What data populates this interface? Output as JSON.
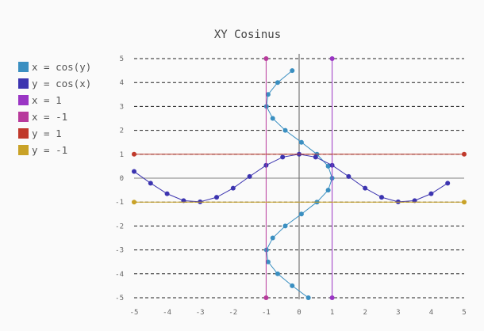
{
  "chart_data": {
    "type": "line",
    "title": "XY Cosinus",
    "xlim": [
      -5,
      5
    ],
    "ylim": [
      -5,
      5
    ],
    "xticks": [
      -5,
      -4,
      -3,
      -2,
      -1,
      0,
      1,
      2,
      3,
      4,
      5
    ],
    "yticks": [
      -5,
      -4,
      -3,
      -2,
      -1,
      0,
      1,
      2,
      3,
      4,
      5
    ],
    "legend_position": "left",
    "grid": "horizontal dashed",
    "series": [
      {
        "name": "x = cos(y)",
        "color": "#3a8fc1",
        "points": [
          [
            0.28,
            -5
          ],
          [
            -0.21,
            -4.5
          ],
          [
            -0.65,
            -4
          ],
          [
            -0.94,
            -3.5
          ],
          [
            -0.99,
            -3
          ],
          [
            -0.8,
            -2.5
          ],
          [
            -0.42,
            -2
          ],
          [
            0.07,
            -1.5
          ],
          [
            0.54,
            -1
          ],
          [
            0.88,
            -0.5
          ],
          [
            1,
            0
          ],
          [
            0.88,
            0.5
          ],
          [
            0.54,
            1
          ],
          [
            0.07,
            1.5
          ],
          [
            -0.42,
            2
          ],
          [
            -0.8,
            2.5
          ],
          [
            -0.99,
            3
          ],
          [
            -0.94,
            3.5
          ],
          [
            -0.65,
            4
          ],
          [
            -0.21,
            4.5
          ]
        ]
      },
      {
        "name": "y = cos(x)",
        "color": "#3c34b0",
        "points": [
          [
            -5,
            0.28
          ],
          [
            -4.5,
            -0.21
          ],
          [
            -4,
            -0.65
          ],
          [
            -3.5,
            -0.94
          ],
          [
            -3,
            -0.99
          ],
          [
            -2.5,
            -0.8
          ],
          [
            -2,
            -0.42
          ],
          [
            -1.5,
            0.07
          ],
          [
            -1,
            0.54
          ],
          [
            -0.5,
            0.88
          ],
          [
            0,
            1
          ],
          [
            0.5,
            0.88
          ],
          [
            1,
            0.54
          ],
          [
            1.5,
            0.07
          ],
          [
            2,
            -0.42
          ],
          [
            2.5,
            -0.8
          ],
          [
            3,
            -0.99
          ],
          [
            3.5,
            -0.94
          ],
          [
            4,
            -0.65
          ],
          [
            4.5,
            -0.21
          ]
        ]
      },
      {
        "name": "x = 1",
        "color": "#9a35c4",
        "points": [
          [
            1,
            -5
          ],
          [
            1,
            5
          ]
        ]
      },
      {
        "name": "x = -1",
        "color": "#b83a9c",
        "points": [
          [
            -1,
            -5
          ],
          [
            -1,
            5
          ]
        ]
      },
      {
        "name": "y = 1",
        "color": "#c0392b",
        "points": [
          [
            -5,
            1
          ],
          [
            5,
            1
          ]
        ]
      },
      {
        "name": "y = -1",
        "color": "#c9a227",
        "points": [
          [
            -5,
            -1
          ],
          [
            5,
            -1
          ]
        ]
      }
    ]
  }
}
